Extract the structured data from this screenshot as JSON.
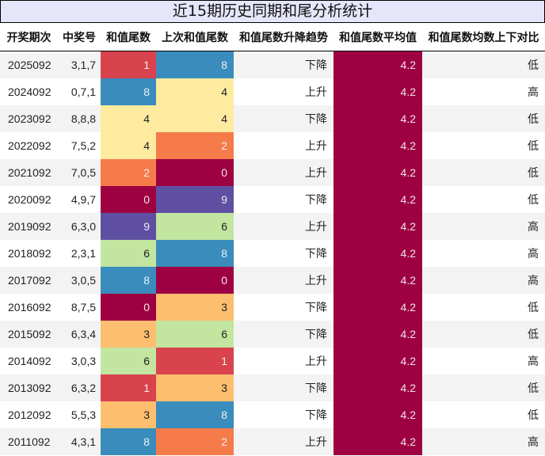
{
  "title": "近15期历史同期和尾分析统计",
  "headers": [
    "开奖期次",
    "中奖号",
    "和值尾数",
    "上次和值尾数",
    "和值尾数升降趋势",
    "和值尾数平均值",
    "和值尾数均数上下对比"
  ],
  "colormap": {
    "0": {
      "bg": "#9e0142",
      "fg": "#f2e6ea"
    },
    "1": {
      "bg": "#d8434e",
      "fg": "#fbecec"
    },
    "2": {
      "bg": "#f57b4a",
      "fg": "#fdeee6"
    },
    "3": {
      "bg": "#fdbe6f",
      "fg": "#222222"
    },
    "4": {
      "bg": "#feeba0",
      "fg": "#222222"
    },
    "6": {
      "bg": "#c2e5a0",
      "fg": "#222222"
    },
    "8": {
      "bg": "#3a8cbc",
      "fg": "#e8f2f8"
    },
    "9": {
      "bg": "#5e4fa2",
      "fg": "#ece9f4"
    }
  },
  "rows": [
    {
      "period": "2025092",
      "numbers": "3,1,7",
      "tail": "1",
      "prev_tail": "8",
      "trend": "下降",
      "avg": "4.2",
      "compare": "低"
    },
    {
      "period": "2024092",
      "numbers": "0,7,1",
      "tail": "8",
      "prev_tail": "4",
      "trend": "上升",
      "avg": "4.2",
      "compare": "高"
    },
    {
      "period": "2023092",
      "numbers": "8,8,8",
      "tail": "4",
      "prev_tail": "4",
      "trend": "下降",
      "avg": "4.2",
      "compare": "低"
    },
    {
      "period": "2022092",
      "numbers": "7,5,2",
      "tail": "4",
      "prev_tail": "2",
      "trend": "上升",
      "avg": "4.2",
      "compare": "低"
    },
    {
      "period": "2021092",
      "numbers": "7,0,5",
      "tail": "2",
      "prev_tail": "0",
      "trend": "上升",
      "avg": "4.2",
      "compare": "低"
    },
    {
      "period": "2020092",
      "numbers": "4,9,7",
      "tail": "0",
      "prev_tail": "9",
      "trend": "下降",
      "avg": "4.2",
      "compare": "低"
    },
    {
      "period": "2019092",
      "numbers": "6,3,0",
      "tail": "9",
      "prev_tail": "6",
      "trend": "上升",
      "avg": "4.2",
      "compare": "高"
    },
    {
      "period": "2018092",
      "numbers": "2,3,1",
      "tail": "6",
      "prev_tail": "8",
      "trend": "下降",
      "avg": "4.2",
      "compare": "高"
    },
    {
      "period": "2017092",
      "numbers": "3,0,5",
      "tail": "8",
      "prev_tail": "0",
      "trend": "上升",
      "avg": "4.2",
      "compare": "高"
    },
    {
      "period": "2016092",
      "numbers": "8,7,5",
      "tail": "0",
      "prev_tail": "3",
      "trend": "下降",
      "avg": "4.2",
      "compare": "低"
    },
    {
      "period": "2015092",
      "numbers": "6,3,4",
      "tail": "3",
      "prev_tail": "6",
      "trend": "下降",
      "avg": "4.2",
      "compare": "低"
    },
    {
      "period": "2014092",
      "numbers": "3,0,3",
      "tail": "6",
      "prev_tail": "1",
      "trend": "上升",
      "avg": "4.2",
      "compare": "高"
    },
    {
      "period": "2013092",
      "numbers": "6,3,2",
      "tail": "1",
      "prev_tail": "3",
      "trend": "下降",
      "avg": "4.2",
      "compare": "低"
    },
    {
      "period": "2012092",
      "numbers": "5,5,3",
      "tail": "3",
      "prev_tail": "8",
      "trend": "下降",
      "avg": "4.2",
      "compare": "低"
    },
    {
      "period": "2011092",
      "numbers": "4,3,1",
      "tail": "8",
      "prev_tail": "2",
      "trend": "上升",
      "avg": "4.2",
      "compare": "高"
    }
  ]
}
